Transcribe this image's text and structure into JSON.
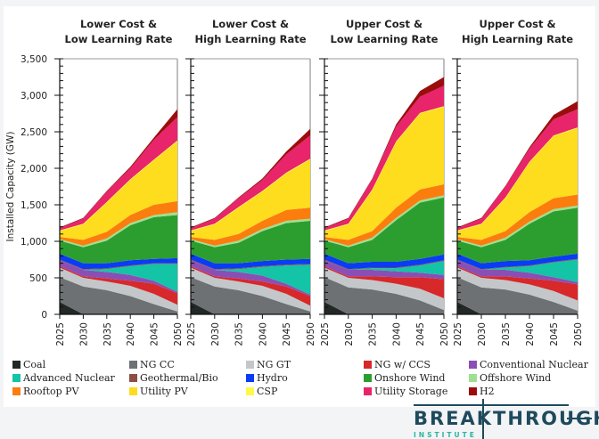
{
  "chart_data": {
    "type": "area",
    "stacked": true,
    "ylabel": "Installed Capacity (GW)",
    "xlabel": "",
    "ylim": [
      0,
      3500
    ],
    "yticks": [
      0,
      500,
      1000,
      1500,
      2000,
      2500,
      3000,
      3500
    ],
    "ytick_labels": [
      "0",
      "500",
      "1,000",
      "1,500",
      "2,000",
      "2,500",
      "3,000",
      "3,500"
    ],
    "x": [
      2025,
      2030,
      2035,
      2040,
      2045,
      2050
    ],
    "xtick_labels": [
      "2025",
      "2030",
      "2035",
      "2040",
      "2045",
      "2050"
    ],
    "grid": false,
    "legend_position": "bottom",
    "technologies": [
      {
        "name": "Coal",
        "color": "#222826"
      },
      {
        "name": "NG CC",
        "color": "#6d7173"
      },
      {
        "name": "NG GT",
        "color": "#c3c7c9"
      },
      {
        "name": "NG w/ CCS",
        "color": "#d7282a"
      },
      {
        "name": "Conventional Nuclear",
        "color": "#8a4fb5"
      },
      {
        "name": "Advanced Nuclear",
        "color": "#13c4a6"
      },
      {
        "name": "Geothermal/Bio",
        "color": "#8b4f45"
      },
      {
        "name": "Hydro",
        "color": "#0a3cf5"
      },
      {
        "name": "Onshore Wind",
        "color": "#2c9e2f"
      },
      {
        "name": "Offshore Wind",
        "color": "#9ee08f"
      },
      {
        "name": "Rooftop PV",
        "color": "#fb7d0e"
      },
      {
        "name": "Utility PV",
        "color": "#fedc1e"
      },
      {
        "name": "CSP",
        "color": "#fff84a"
      },
      {
        "name": "Utility Storage",
        "color": "#e8246a"
      },
      {
        "name": "H2",
        "color": "#9b0d0d"
      }
    ],
    "panels": [
      {
        "title_line1": "Lower Cost &",
        "title_line2": "Low Learning Rate",
        "series": [
          {
            "name": "Coal",
            "values": [
              170,
              0,
              0,
              0,
              0,
              0
            ]
          },
          {
            "name": "NG CC",
            "values": [
              340,
              380,
              330,
              250,
              140,
              40
            ]
          },
          {
            "name": "NG GT",
            "values": [
              130,
              120,
              120,
              140,
              140,
              90
            ]
          },
          {
            "name": "NG w/ CCS",
            "values": [
              20,
              20,
              40,
              70,
              140,
              160
            ]
          },
          {
            "name": "Conventional Nuclear",
            "values": [
              80,
              90,
              90,
              80,
              40,
              20
            ]
          },
          {
            "name": "Advanced Nuclear",
            "values": [
              0,
              0,
              40,
              120,
              230,
              380
            ]
          },
          {
            "name": "Geothermal/Bio",
            "values": [
              10,
              10,
              10,
              10,
              10,
              10
            ]
          },
          {
            "name": "Hydro",
            "values": [
              80,
              80,
              70,
              70,
              60,
              70
            ]
          },
          {
            "name": "Onshore Wind",
            "values": [
              180,
              220,
              310,
              480,
              570,
              590
            ]
          },
          {
            "name": "Offshore Wind",
            "values": [
              20,
              20,
              30,
              30,
              30,
              40
            ]
          },
          {
            "name": "Rooftop PV",
            "values": [
              30,
              80,
              90,
              110,
              140,
              150
            ]
          },
          {
            "name": "Utility PV",
            "values": [
              80,
              210,
              400,
              480,
              610,
              820
            ]
          },
          {
            "name": "CSP",
            "values": [
              10,
              10,
              10,
              10,
              10,
              10
            ]
          },
          {
            "name": "Utility Storage",
            "values": [
              30,
              70,
              140,
              150,
              270,
              320
            ]
          },
          {
            "name": "H2",
            "values": [
              10,
              10,
              10,
              20,
              30,
              110
            ]
          }
        ]
      },
      {
        "title_line1": "Lower Cost &",
        "title_line2": "High Learning Rate",
        "series": [
          {
            "name": "Coal",
            "values": [
              170,
              0,
              0,
              0,
              0,
              0
            ]
          },
          {
            "name": "NG CC",
            "values": [
              340,
              380,
              330,
              250,
              140,
              40
            ]
          },
          {
            "name": "NG GT",
            "values": [
              130,
              120,
              120,
              140,
              140,
              80
            ]
          },
          {
            "name": "NG w/ CCS",
            "values": [
              20,
              20,
              40,
              60,
              100,
              130
            ]
          },
          {
            "name": "Conventional Nuclear",
            "values": [
              80,
              90,
              90,
              80,
              40,
              20
            ]
          },
          {
            "name": "Advanced Nuclear",
            "values": [
              0,
              0,
              40,
              120,
              250,
              410
            ]
          },
          {
            "name": "Geothermal/Bio",
            "values": [
              10,
              10,
              10,
              10,
              10,
              10
            ]
          },
          {
            "name": "Hydro",
            "values": [
              80,
              80,
              70,
              70,
              70,
              70
            ]
          },
          {
            "name": "Onshore Wind",
            "values": [
              180,
              220,
              280,
              410,
              500,
              520
            ]
          },
          {
            "name": "Offshore Wind",
            "values": [
              20,
              20,
              30,
              30,
              30,
              30
            ]
          },
          {
            "name": "Rooftop PV",
            "values": [
              30,
              80,
              90,
              110,
              150,
              150
            ]
          },
          {
            "name": "Utility PV",
            "values": [
              80,
              210,
              360,
              400,
              500,
              660
            ]
          },
          {
            "name": "CSP",
            "values": [
              10,
              10,
              10,
              10,
              10,
              10
            ]
          },
          {
            "name": "Utility Storage",
            "values": [
              30,
              70,
              120,
              150,
              250,
              320
            ]
          },
          {
            "name": "H2",
            "values": [
              10,
              10,
              10,
              20,
              40,
              90
            ]
          }
        ]
      },
      {
        "title_line1": "Upper Cost &",
        "title_line2": "Low Learning Rate",
        "series": [
          {
            "name": "Coal",
            "values": [
              170,
              0,
              0,
              0,
              0,
              0
            ]
          },
          {
            "name": "NG CC",
            "values": [
              340,
              370,
              340,
              280,
              190,
              60
            ]
          },
          {
            "name": "NG GT",
            "values": [
              130,
              130,
              130,
              140,
              160,
              160
            ]
          },
          {
            "name": "NG w/ CCS",
            "values": [
              20,
              20,
              50,
              90,
              160,
              260
            ]
          },
          {
            "name": "Conventional Nuclear",
            "values": [
              80,
              90,
              90,
              80,
              60,
              60
            ]
          },
          {
            "name": "Advanced Nuclear",
            "values": [
              0,
              0,
              20,
              40,
              100,
              190
            ]
          },
          {
            "name": "Geothermal/Bio",
            "values": [
              10,
              10,
              10,
              10,
              10,
              10
            ]
          },
          {
            "name": "Hydro",
            "values": [
              80,
              80,
              80,
              80,
              80,
              80
            ]
          },
          {
            "name": "Onshore Wind",
            "values": [
              180,
              220,
              300,
              570,
              770,
              780
            ]
          },
          {
            "name": "Offshore Wind",
            "values": [
              20,
              20,
              30,
              30,
              30,
              30
            ]
          },
          {
            "name": "Rooftop PV",
            "values": [
              30,
              80,
              90,
              140,
              150,
              150
            ]
          },
          {
            "name": "Utility PV",
            "values": [
              80,
              210,
              560,
              900,
              1040,
              1060
            ]
          },
          {
            "name": "CSP",
            "values": [
              10,
              10,
              10,
              10,
              10,
              10
            ]
          },
          {
            "name": "Utility Storage",
            "values": [
              30,
              70,
              140,
              200,
              220,
              280
            ]
          },
          {
            "name": "H2",
            "values": [
              10,
              10,
              10,
              30,
              80,
              120
            ]
          }
        ]
      },
      {
        "title_line1": "Upper Cost &",
        "title_line2": "High Learning Rate",
        "series": [
          {
            "name": "Coal",
            "values": [
              170,
              0,
              0,
              0,
              0,
              0
            ]
          },
          {
            "name": "NG CC",
            "values": [
              340,
              370,
              340,
              270,
              170,
              50
            ]
          },
          {
            "name": "NG GT",
            "values": [
              130,
              130,
              130,
              140,
              150,
              140
            ]
          },
          {
            "name": "NG w/ CCS",
            "values": [
              20,
              20,
              50,
              80,
              140,
              220
            ]
          },
          {
            "name": "Conventional Nuclear",
            "values": [
              80,
              90,
              90,
              80,
              50,
              30
            ]
          },
          {
            "name": "Advanced Nuclear",
            "values": [
              0,
              0,
              30,
              90,
              200,
              310
            ]
          },
          {
            "name": "Geothermal/Bio",
            "values": [
              10,
              10,
              10,
              10,
              10,
              10
            ]
          },
          {
            "name": "Hydro",
            "values": [
              80,
              80,
              80,
              70,
              70,
              70
            ]
          },
          {
            "name": "Onshore Wind",
            "values": [
              180,
              220,
              290,
              500,
              620,
              630
            ]
          },
          {
            "name": "Offshore Wind",
            "values": [
              20,
              20,
              30,
              30,
              30,
              30
            ]
          },
          {
            "name": "Rooftop PV",
            "values": [
              30,
              80,
              90,
              130,
              150,
              150
            ]
          },
          {
            "name": "Utility PV",
            "values": [
              80,
              210,
              450,
              680,
              850,
              910
            ]
          },
          {
            "name": "CSP",
            "values": [
              10,
              10,
              10,
              10,
              10,
              10
            ]
          },
          {
            "name": "Utility Storage",
            "values": [
              30,
              70,
              150,
              180,
              220,
              250
            ]
          },
          {
            "name": "H2",
            "values": [
              10,
              10,
              10,
              20,
              60,
              110
            ]
          }
        ]
      }
    ]
  },
  "legend": {
    "items": [
      {
        "label": "Coal",
        "color": "#222826"
      },
      {
        "label": "NG CC",
        "color": "#6d7173"
      },
      {
        "label": "NG GT",
        "color": "#c3c7c9"
      },
      {
        "label": "NG w/ CCS",
        "color": "#d7282a"
      },
      {
        "label": "Conventional Nuclear",
        "color": "#8a4fb5"
      },
      {
        "label": "Advanced Nuclear",
        "color": "#13c4a6"
      },
      {
        "label": "Geothermal/Bio",
        "color": "#8b4f45"
      },
      {
        "label": "Hydro",
        "color": "#0a3cf5"
      },
      {
        "label": "Onshore Wind",
        "color": "#2c9e2f"
      },
      {
        "label": "Offshore Wind",
        "color": "#9ee08f"
      },
      {
        "label": "Rooftop PV",
        "color": "#fb7d0e"
      },
      {
        "label": "Utility PV",
        "color": "#fedc1e"
      },
      {
        "label": "CSP",
        "color": "#fff84a"
      },
      {
        "label": "Utility Storage",
        "color": "#e8246a"
      },
      {
        "label": "H2",
        "color": "#9b0d0d"
      }
    ]
  },
  "logo": {
    "word": "BREAKTHROUGH",
    "sub": "INSTITUTE"
  }
}
